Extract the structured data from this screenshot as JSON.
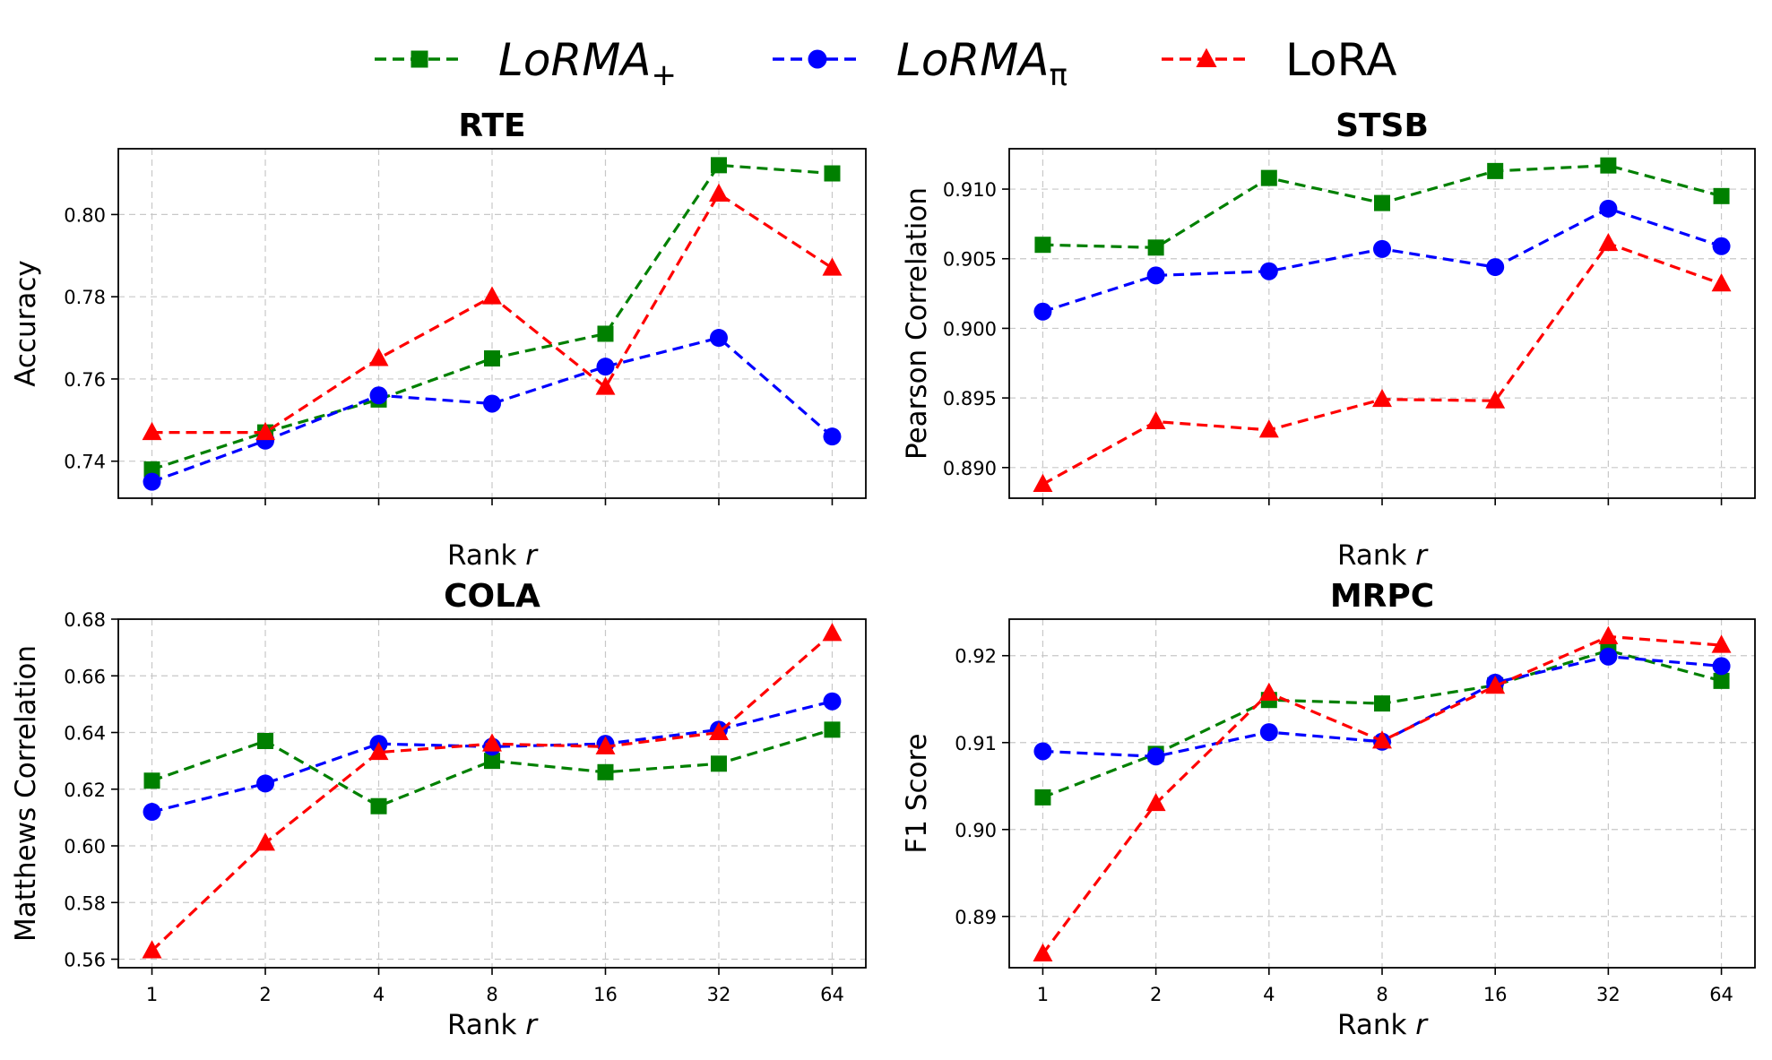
{
  "legend": {
    "items": [
      {
        "key": "lorma_plus",
        "base": "LoRMA",
        "subscript": "+",
        "italic": true,
        "color": "#008000",
        "marker": "square"
      },
      {
        "key": "lorma_pi",
        "base": "LoRMA",
        "subscript": "π",
        "italic": true,
        "color": "#0000ff",
        "marker": "circle"
      },
      {
        "key": "lora",
        "base": "LoRA",
        "subscript": "",
        "italic": false,
        "color": "#ff0000",
        "marker": "triangle"
      }
    ]
  },
  "chart_data": [
    {
      "type": "line",
      "title": "RTE",
      "xlabel": "Rank r",
      "ylabel": "Accuracy",
      "x": [
        "1",
        "2",
        "4",
        "8",
        "16",
        "32",
        "64"
      ],
      "show_xticklabels": false,
      "ylim": [
        0.731,
        0.816
      ],
      "yticks": [
        "0.74",
        "0.76",
        "0.78",
        "0.80"
      ],
      "grid": true,
      "series": [
        {
          "key": "lorma_plus",
          "values": [
            0.738,
            0.747,
            0.755,
            0.765,
            0.771,
            0.812,
            0.81
          ]
        },
        {
          "key": "lorma_pi",
          "values": [
            0.735,
            0.745,
            0.756,
            0.754,
            0.763,
            0.77,
            0.746
          ]
        },
        {
          "key": "lora",
          "values": [
            0.747,
            0.747,
            0.765,
            0.78,
            0.758,
            0.805,
            0.787
          ]
        }
      ]
    },
    {
      "type": "line",
      "title": "STSB",
      "xlabel": "Rank r",
      "ylabel": "Pearson Correlation",
      "x": [
        "1",
        "2",
        "4",
        "8",
        "16",
        "32",
        "64"
      ],
      "show_xticklabels": false,
      "ylim": [
        0.8878,
        0.9129
      ],
      "yticks": [
        "0.890",
        "0.895",
        "0.900",
        "0.905",
        "0.910"
      ],
      "grid": true,
      "series": [
        {
          "key": "lorma_plus",
          "values": [
            0.906,
            0.9058,
            0.9108,
            0.909,
            0.9113,
            0.9117,
            0.9095
          ]
        },
        {
          "key": "lorma_pi",
          "values": [
            0.9012,
            0.9038,
            0.9041,
            0.9057,
            0.9044,
            0.9086,
            0.9059
          ]
        },
        {
          "key": "lora",
          "values": [
            0.8888,
            0.8933,
            0.8927,
            0.8949,
            0.8948,
            0.9061,
            0.9032
          ]
        }
      ]
    },
    {
      "type": "line",
      "title": "COLA",
      "xlabel": "Rank r",
      "ylabel": "Matthews Correlation",
      "x": [
        "1",
        "2",
        "4",
        "8",
        "16",
        "32",
        "64"
      ],
      "show_xticklabels": true,
      "ylim": [
        0.557,
        0.68
      ],
      "yticks": [
        "0.56",
        "0.58",
        "0.60",
        "0.62",
        "0.64",
        "0.66",
        "0.68"
      ],
      "grid": true,
      "series": [
        {
          "key": "lorma_plus",
          "values": [
            0.623,
            0.637,
            0.614,
            0.63,
            0.626,
            0.629,
            0.641
          ]
        },
        {
          "key": "lorma_pi",
          "values": [
            0.612,
            0.622,
            0.636,
            0.635,
            0.636,
            0.641,
            0.651
          ]
        },
        {
          "key": "lora",
          "values": [
            0.563,
            0.601,
            0.633,
            0.636,
            0.635,
            0.64,
            0.675
          ]
        }
      ]
    },
    {
      "type": "line",
      "title": "MRPC",
      "xlabel": "Rank r",
      "ylabel": "F1 Score",
      "x": [
        "1",
        "2",
        "4",
        "8",
        "16",
        "32",
        "64"
      ],
      "show_xticklabels": true,
      "ylim": [
        0.8841,
        0.9242
      ],
      "yticks": [
        "0.89",
        "0.90",
        "0.91",
        "0.92"
      ],
      "grid": true,
      "series": [
        {
          "key": "lorma_plus",
          "values": [
            0.9037,
            0.9087,
            0.9149,
            0.9145,
            0.9166,
            0.9206,
            0.9171
          ]
        },
        {
          "key": "lorma_pi",
          "values": [
            0.909,
            0.9084,
            0.9112,
            0.9101,
            0.9169,
            0.9199,
            0.9188
          ]
        },
        {
          "key": "lora",
          "values": [
            0.8857,
            0.903,
            0.9157,
            0.9102,
            0.9165,
            0.9222,
            0.9212
          ]
        }
      ]
    }
  ]
}
